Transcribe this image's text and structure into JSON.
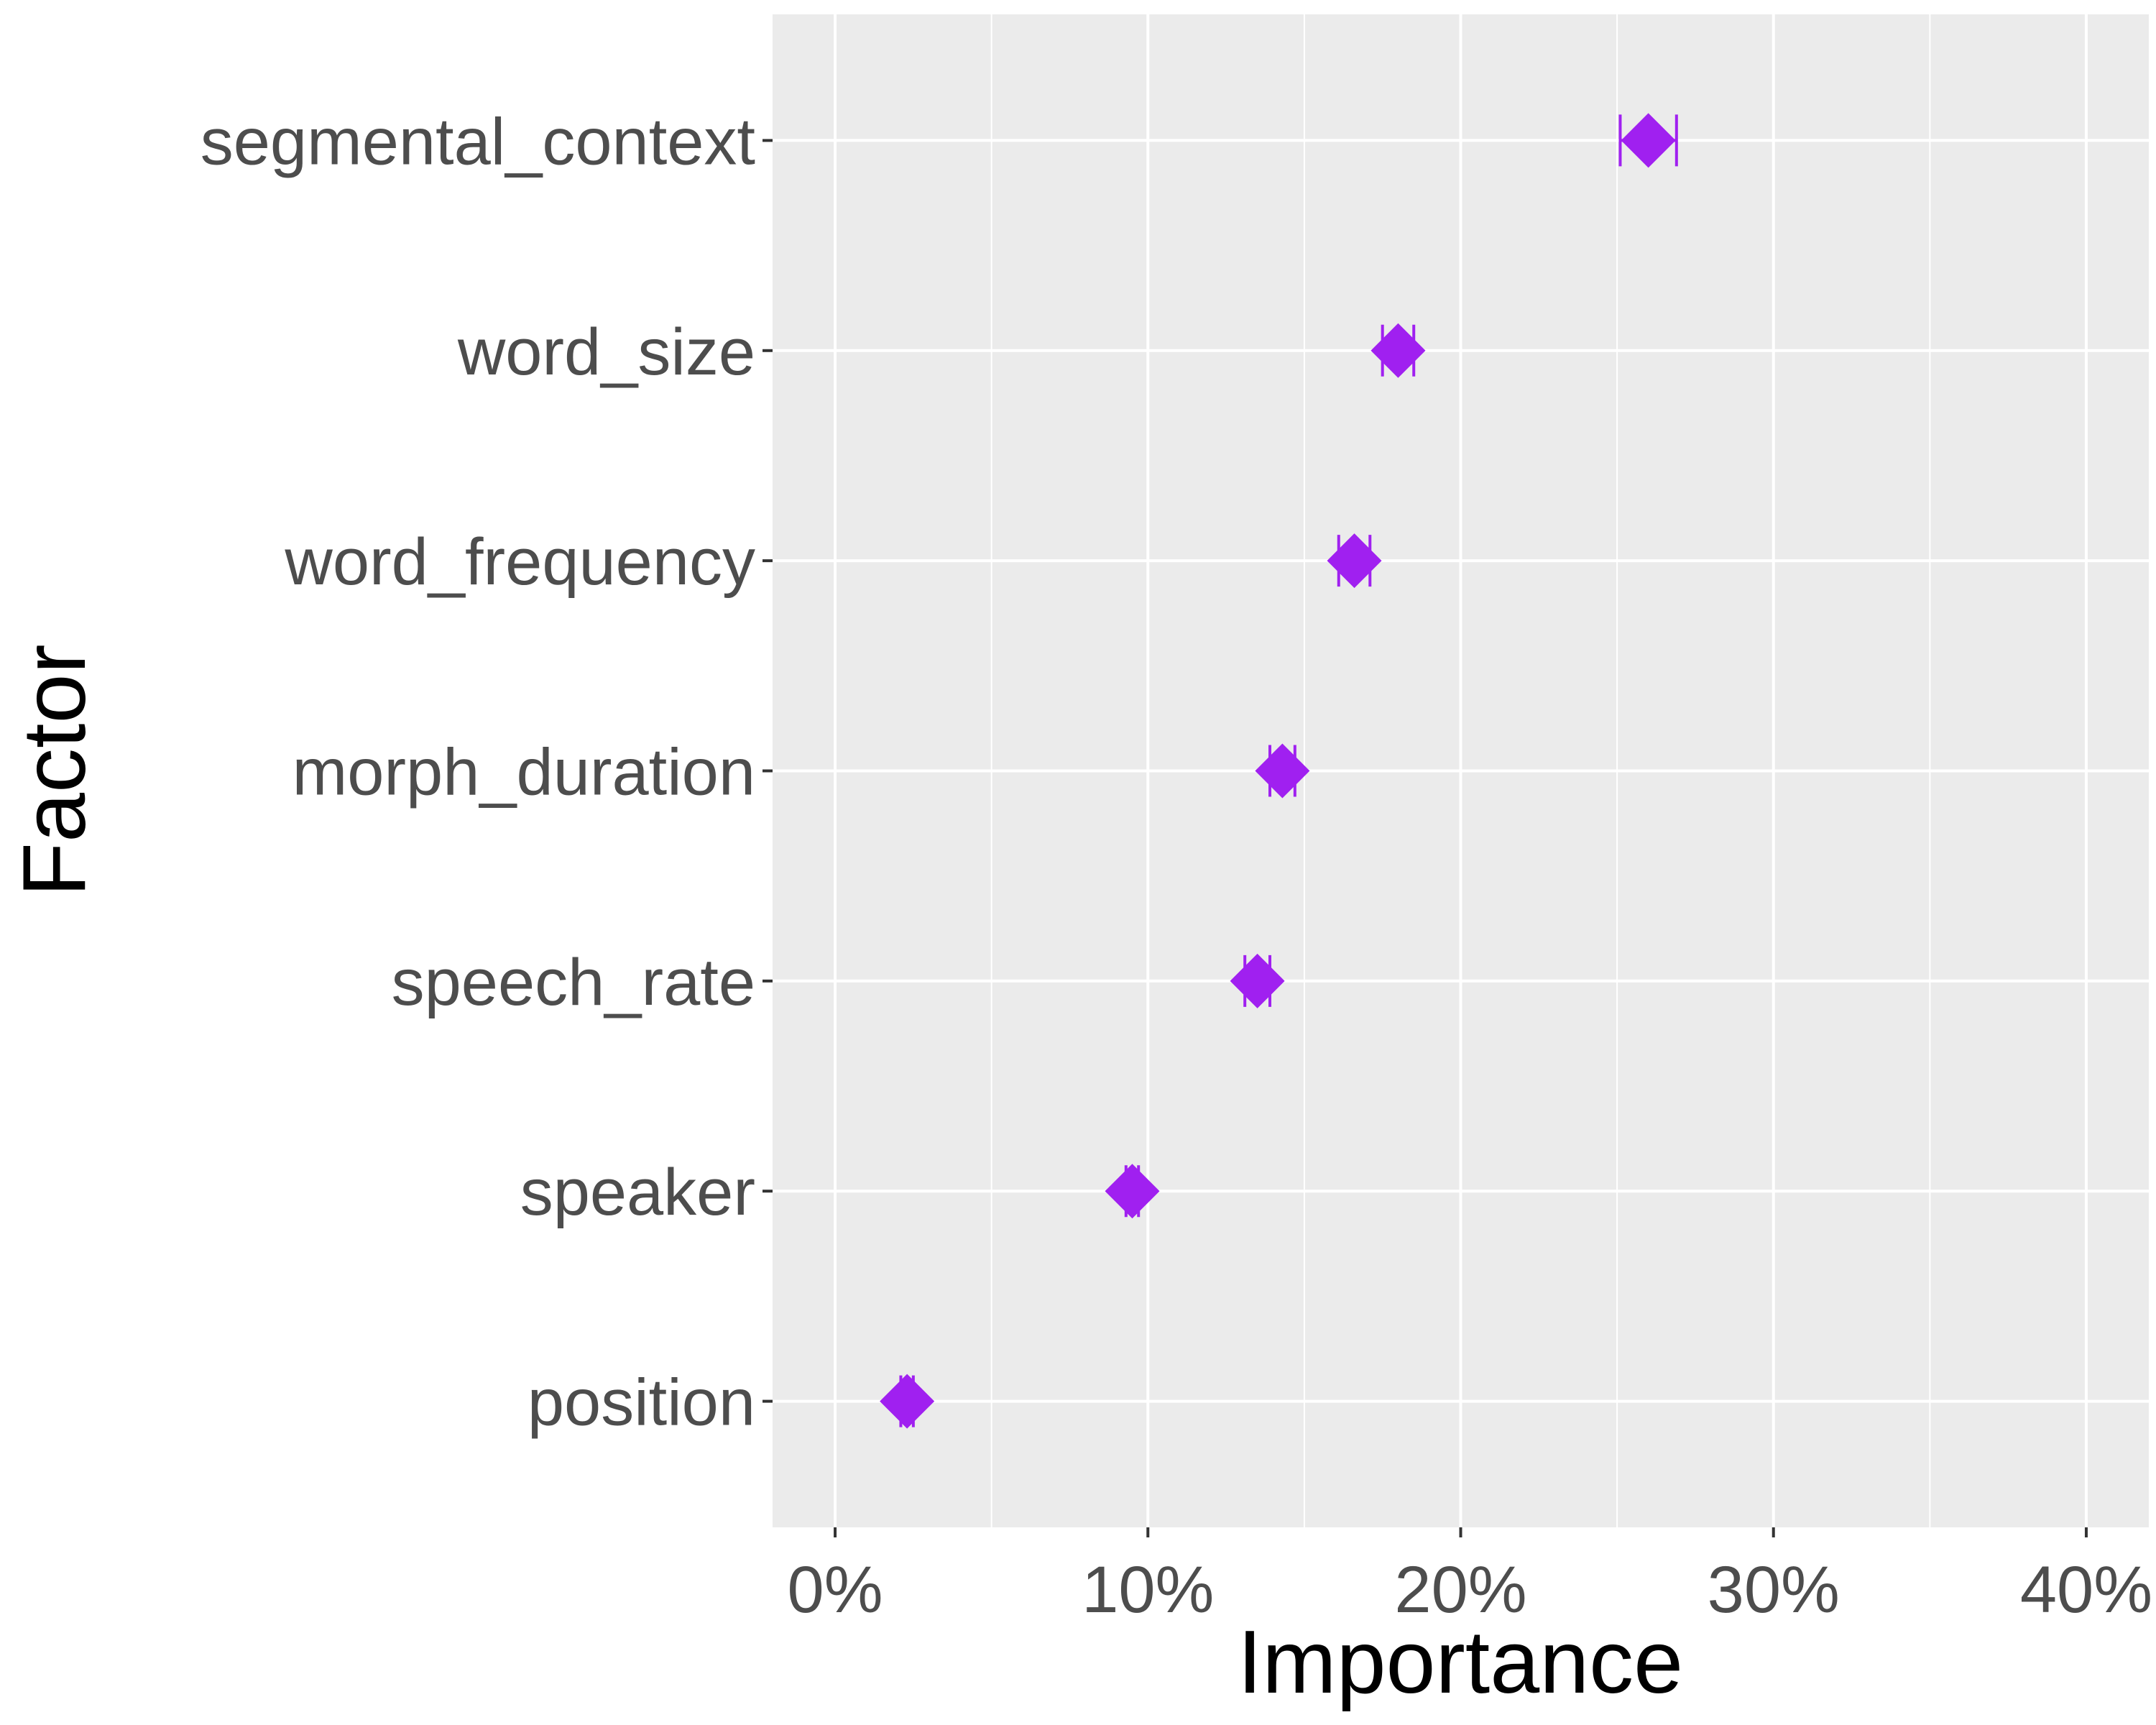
{
  "chart_data": {
    "type": "scatter",
    "xlabel": "Importance",
    "ylabel": "Factor",
    "xlim": [
      -0.02,
      0.42
    ],
    "x_ticks": [
      0,
      0.1,
      0.2,
      0.3,
      0.4
    ],
    "x_tick_labels": [
      "0%",
      "10%",
      "20%",
      "30%",
      "40%"
    ],
    "categories": [
      "segmental_context",
      "word_size",
      "word_frequency",
      "morph_duration",
      "speech_rate",
      "speaker",
      "position"
    ],
    "points": [
      {
        "factor": "segmental_context",
        "value": 0.26,
        "low": 0.251,
        "high": 0.269
      },
      {
        "factor": "word_size",
        "value": 0.18,
        "low": 0.175,
        "high": 0.185
      },
      {
        "factor": "word_frequency",
        "value": 0.166,
        "low": 0.161,
        "high": 0.171
      },
      {
        "factor": "morph_duration",
        "value": 0.143,
        "low": 0.139,
        "high": 0.147
      },
      {
        "factor": "speech_rate",
        "value": 0.135,
        "low": 0.131,
        "high": 0.139
      },
      {
        "factor": "speaker",
        "value": 0.095,
        "low": 0.093,
        "high": 0.097
      },
      {
        "factor": "position",
        "value": 0.023,
        "low": 0.021,
        "high": 0.025
      }
    ],
    "marker": "diamond",
    "grid": true,
    "colors": {
      "point": "#a020f0",
      "panel_background": "#ebebeb",
      "grid": "#ffffff",
      "axis_text": "#4d4d4d",
      "axis_title": "#000000"
    }
  }
}
